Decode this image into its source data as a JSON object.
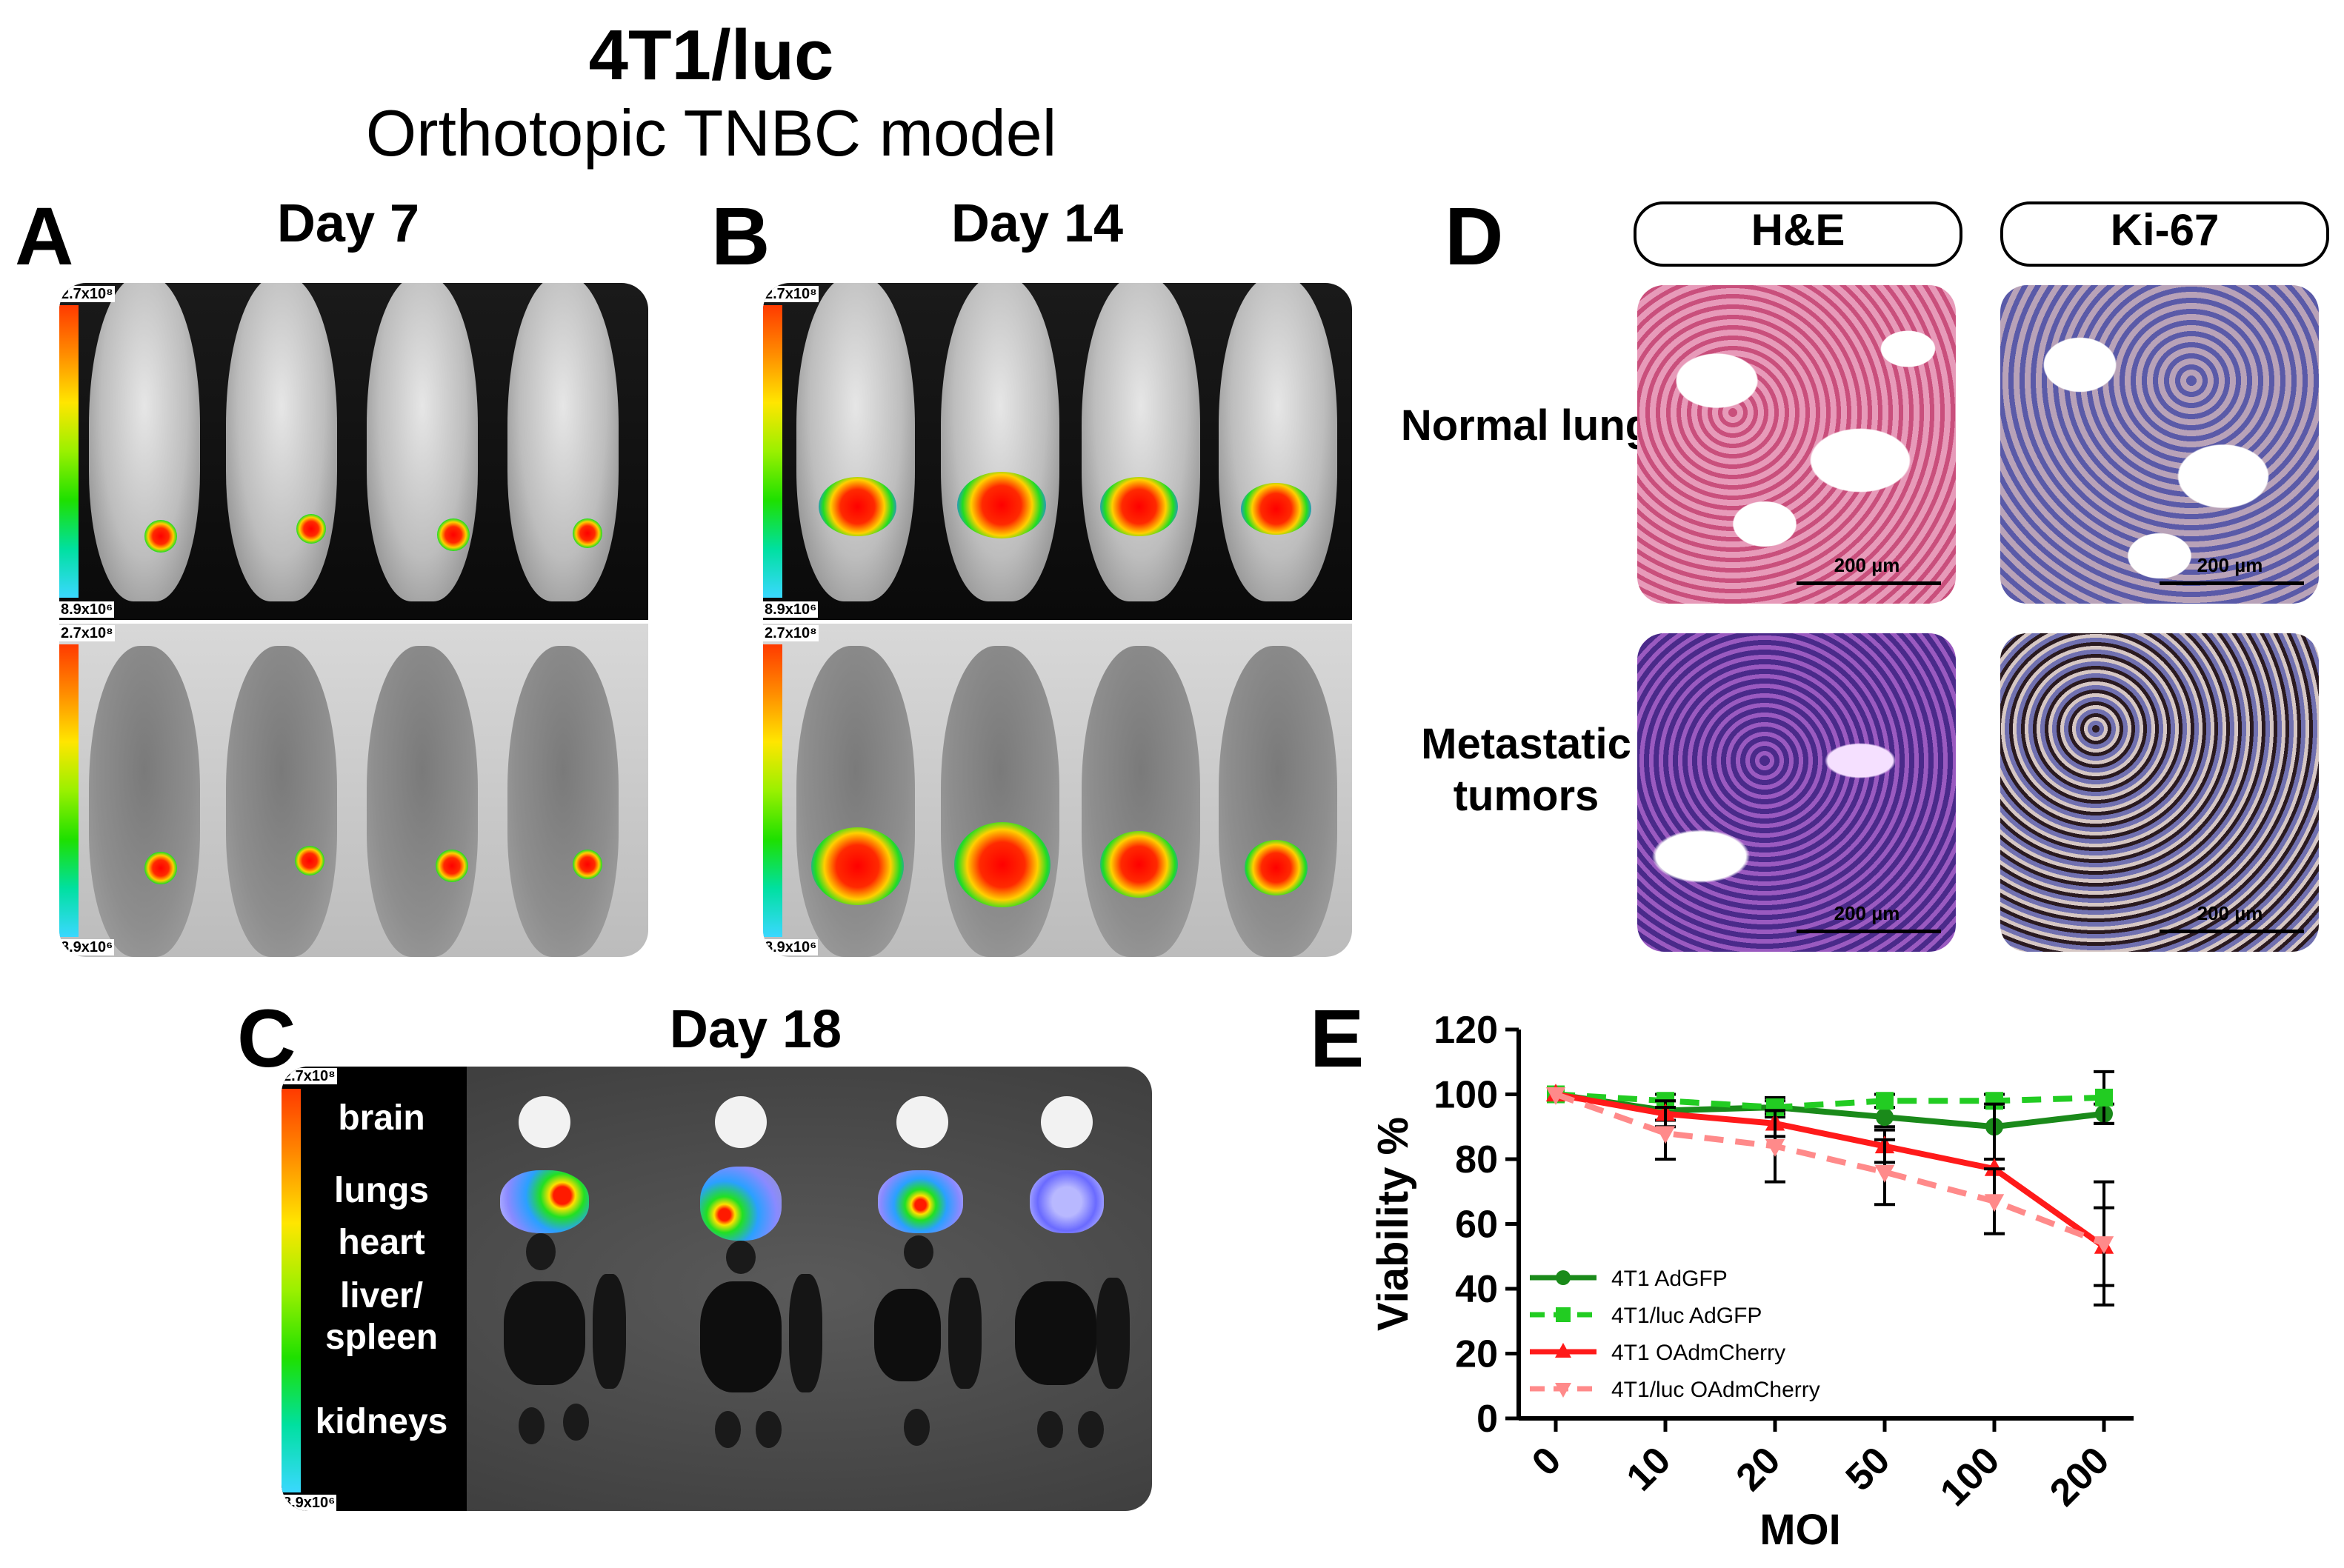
{
  "figure": {
    "title": "4T1/luc",
    "subtitle": "Orthotopic TNBC model"
  },
  "panel_a": {
    "letter": "A",
    "label": "Day 7",
    "scale_max": "2.7x10⁸",
    "scale_min": "8.9x10⁶"
  },
  "panel_b": {
    "letter": "B",
    "label": "Day 14",
    "scale_max": "2.7x10⁸",
    "scale_min": "8.9x10⁶"
  },
  "panel_c": {
    "letter": "C",
    "label": "Day 18",
    "scale_max": "2.7x10⁸",
    "scale_min": "8.9x10⁶",
    "organs": [
      "brain",
      "lungs",
      "heart",
      "liver/ spleen",
      "kidneys"
    ]
  },
  "panel_d": {
    "letter": "D",
    "stains": [
      "H&E",
      "Ki-67"
    ],
    "rows": [
      "Normal lung",
      "Metastatic tumors"
    ],
    "scalebar": "200 µm"
  },
  "panel_e": {
    "letter": "E"
  },
  "chart_data": {
    "type": "line",
    "categories": [
      "0",
      "10",
      "20",
      "50",
      "100",
      "200"
    ],
    "xlabel": "MOI",
    "ylabel": "Viability %",
    "ylim": [
      0,
      120
    ],
    "yticks": [
      "0",
      "20",
      "40",
      "60",
      "80",
      "100",
      "120"
    ],
    "legend_position": "bottom-left",
    "series": [
      {
        "name": "4T1 AdGFP",
        "values": [
          100,
          95,
          96,
          93,
          90,
          94
        ],
        "err": [
          0,
          3,
          3,
          3,
          10,
          3
        ],
        "color": "#1a8a1a",
        "dash": false,
        "marker": "circle"
      },
      {
        "name": "4T1/luc AdGFP",
        "values": [
          100,
          98,
          96,
          98,
          98,
          99
        ],
        "err": [
          0,
          2,
          2,
          2,
          2,
          8
        ],
        "color": "#22cc22",
        "dash": true,
        "marker": "square"
      },
      {
        "name": "4T1 OAdmCherry",
        "values": [
          100,
          94,
          91,
          84,
          77,
          53
        ],
        "err": [
          0,
          4,
          4,
          5,
          20,
          12
        ],
        "color": "#ff1a1a",
        "dash": false,
        "marker": "triangle-up"
      },
      {
        "name": "4T1/luc OAdmCherry",
        "values": [
          100,
          88,
          84,
          76,
          67,
          54
        ],
        "err": [
          0,
          8,
          11,
          10,
          10,
          19
        ],
        "color": "#ff8a8a",
        "dash": true,
        "marker": "triangle-down"
      }
    ]
  }
}
